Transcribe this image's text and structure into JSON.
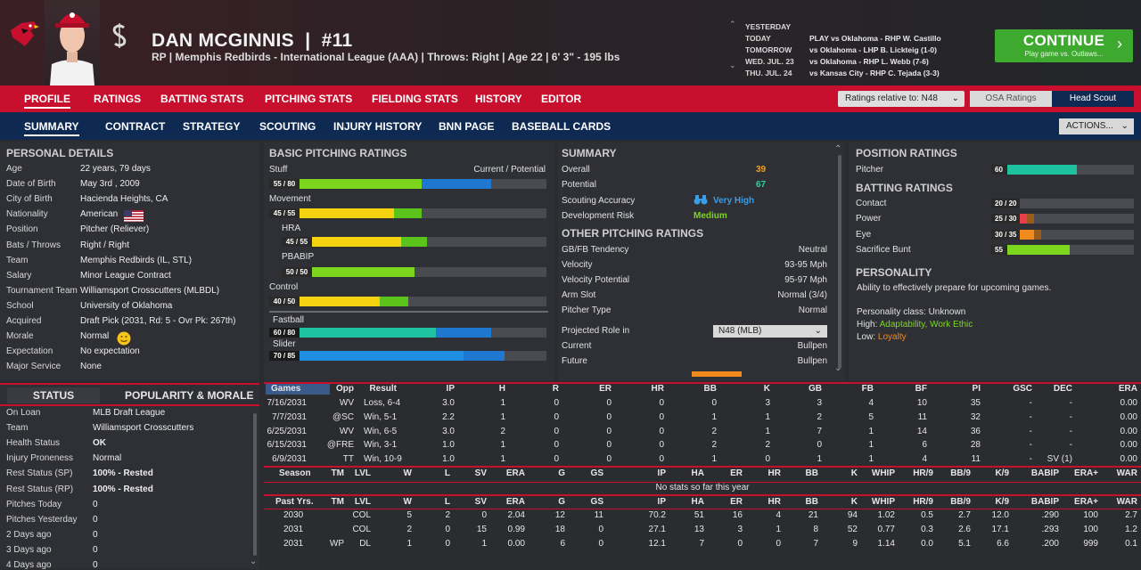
{
  "header": {
    "player_name": "DAN MCGINNIS",
    "number": "#11",
    "subtitle": "RP | Memphis Redbirds - International League (AAA)  |  Throws: Right  |  Age 22  |  6' 3\" - 195 lbs",
    "schedule": [
      {
        "day": "YESTERDAY",
        "game": ""
      },
      {
        "day": "TODAY",
        "game": "PLAY vs Oklahoma - RHP W. Castillo"
      },
      {
        "day": "TOMORROW",
        "game": "vs Oklahoma - LHP B. Lickteig (1-0)"
      },
      {
        "day": "WED. JUL. 23",
        "game": "vs Oklahoma - RHP L. Webb (7-6)"
      },
      {
        "day": "THU. JUL. 24",
        "game": "vs Kansas City - RHP C. Tejada (3-3)"
      }
    ],
    "continue_label": "CONTINUE",
    "continue_sub": "Play game vs. Outlaws..."
  },
  "nav1": {
    "tabs": [
      "PROFILE",
      "RATINGS",
      "BATTING STATS",
      "PITCHING STATS",
      "FIELDING STATS",
      "HISTORY",
      "EDITOR"
    ],
    "ratings_relative": "Ratings relative to: N48",
    "osa": "OSA Ratings",
    "head_scout": "Head Scout"
  },
  "nav2": {
    "tabs": [
      "SUMMARY",
      "CONTRACT",
      "STRATEGY",
      "SCOUTING",
      "INJURY HISTORY",
      "BNN PAGE",
      "BASEBALL CARDS"
    ],
    "actions": "ACTIONS..."
  },
  "personal": {
    "title": "PERSONAL DETAILS",
    "rows": [
      [
        "Age",
        "22 years, 79 days"
      ],
      [
        "Date of Birth",
        "May 3rd , 2009"
      ],
      [
        "City of Birth",
        "Hacienda Heights, CA"
      ],
      [
        "Nationality",
        "American"
      ],
      [
        "Position",
        "Pitcher (Reliever)"
      ],
      [
        "Bats / Throws",
        "Right / Right"
      ],
      [
        "Team",
        "Memphis Redbirds (IL, STL)"
      ],
      [
        "Salary",
        "Minor League Contract"
      ],
      [
        "Tournament Team",
        "Williamsport Crosscutters (MLBDL)"
      ],
      [
        "School",
        "University of Oklahoma"
      ],
      [
        "Acquired",
        "Draft Pick (2031, Rd: 5 - Ovr Pk: 267th)"
      ],
      [
        "Morale",
        "Normal"
      ],
      [
        "Expectation",
        "No expectation"
      ],
      [
        "Major Service",
        "None"
      ]
    ]
  },
  "status": {
    "tab1": "STATUS",
    "tab2": "POPULARITY & MORALE",
    "rows": [
      [
        "On Loan",
        "MLB Draft League"
      ],
      [
        "Team",
        "Williamsport Crosscutters"
      ],
      [
        "Health Status",
        "OK"
      ],
      [
        "Injury Proneness",
        "Normal"
      ],
      [
        "Rest Status (SP)",
        "100% - Rested"
      ],
      [
        "Rest Status (RP)",
        "100% - Rested"
      ],
      [
        "Pitches Today",
        "0"
      ],
      [
        "Pitches Yesterday",
        "0"
      ],
      [
        "2 Days ago",
        "0"
      ],
      [
        "3 Days ago",
        "0"
      ],
      [
        "4 Days ago",
        "0"
      ]
    ]
  },
  "pitching": {
    "title": "BASIC PITCHING RATINGS",
    "cur_pot": "Current / Potential",
    "ratings": [
      {
        "name": "Stuff",
        "label": "55 / 80",
        "cur": 55,
        "pot": 80,
        "color": "#7cd61e"
      },
      {
        "name": "Movement",
        "label": "45 / 55",
        "cur": 45,
        "pot": 55,
        "color": "#f5d20f"
      },
      {
        "name": "HRA",
        "label": "45 / 55",
        "cur": 45,
        "pot": 55,
        "color": "#f5d20f"
      },
      {
        "name": "PBABIP",
        "label": "50 / 50",
        "cur": 50,
        "pot": 50,
        "color": "#7cd61e"
      },
      {
        "name": "Control",
        "label": "40 / 50",
        "cur": 40,
        "pot": 50,
        "color": "#f5d20f"
      },
      {
        "name": "Fastball",
        "label": "60 / 80",
        "cur": 60,
        "pot": 80,
        "color": "#1fc2a0"
      },
      {
        "name": "Slider",
        "label": "70 / 85",
        "cur": 70,
        "pot": 85,
        "color": "#1e8fe0"
      }
    ]
  },
  "summary": {
    "title": "SUMMARY",
    "rows": [
      [
        "Overall",
        "39"
      ],
      [
        "Potential",
        "67"
      ],
      [
        "Scouting Accuracy",
        "Very High"
      ],
      [
        "Development Risk",
        "Medium"
      ]
    ],
    "other_title": "OTHER PITCHING RATINGS",
    "other": [
      [
        "GB/FB Tendency",
        "Neutral"
      ],
      [
        "Velocity",
        "93-95 Mph"
      ],
      [
        "Velocity Potential",
        "95-97 Mph"
      ],
      [
        "Arm Slot",
        "Normal (3/4)"
      ],
      [
        "Pitcher Type",
        "Normal"
      ]
    ],
    "role_label": "Projected Role in",
    "role_select": "N48 (MLB)",
    "current": "Current",
    "current_val": "Bullpen",
    "future": "Future",
    "future_val": "Bullpen"
  },
  "position": {
    "title": "POSITION RATINGS",
    "pitcher": "Pitcher",
    "pitcher_val": 60,
    "batting_title": "BATTING RATINGS",
    "batting": [
      [
        "Contact",
        "20 / 20",
        20,
        20,
        "#e8404a"
      ],
      [
        "Power",
        "25 / 30",
        25,
        30,
        "#e8404a"
      ],
      [
        "Eye",
        "30 / 35",
        30,
        35,
        "#f08a1c"
      ],
      [
        "Sacrifice Bunt",
        "55",
        55,
        55,
        "#7cd61e"
      ]
    ],
    "personality_title": "PERSONALITY",
    "personality_desc": "Ability to effectively prepare for upcoming games.",
    "class": "Personality class: Unknown",
    "high_label": "High:",
    "high": "Adaptability, Work Ethic",
    "low_label": "Low:",
    "low": "Loyalty"
  },
  "games": {
    "headers": [
      "Games",
      "Opp",
      "Result",
      "IP",
      "H",
      "R",
      "ER",
      "HR",
      "BB",
      "K",
      "GB",
      "FB",
      "BF",
      "PI",
      "GSC",
      "DEC",
      "ERA"
    ],
    "rows": [
      [
        "7/16/2031",
        "WV",
        "Loss, 6-4",
        "3.0",
        "1",
        "0",
        "0",
        "0",
        "0",
        "3",
        "3",
        "4",
        "10",
        "35",
        "-",
        "-",
        "0.00"
      ],
      [
        "7/7/2031",
        "@SC",
        "Win, 5-1",
        "2.2",
        "1",
        "0",
        "0",
        "0",
        "1",
        "1",
        "2",
        "5",
        "11",
        "32",
        "-",
        "-",
        "0.00"
      ],
      [
        "6/25/2031",
        "WV",
        "Win, 6-5",
        "3.0",
        "2",
        "0",
        "0",
        "0",
        "2",
        "1",
        "7",
        "1",
        "14",
        "36",
        "-",
        "-",
        "0.00"
      ],
      [
        "6/15/2031",
        "@FRE",
        "Win, 3-1",
        "1.0",
        "1",
        "0",
        "0",
        "0",
        "2",
        "2",
        "0",
        "1",
        "6",
        "28",
        "-",
        "-",
        "0.00"
      ],
      [
        "6/9/2031",
        "TT",
        "Win, 10-9",
        "1.0",
        "1",
        "0",
        "0",
        "0",
        "1",
        "0",
        "1",
        "1",
        "4",
        "11",
        "-",
        "SV (1)",
        "0.00"
      ]
    ]
  },
  "season": {
    "headers": [
      "Season",
      "TM",
      "LVL",
      "W",
      "L",
      "SV",
      "ERA",
      "G",
      "GS",
      "IP",
      "HA",
      "ER",
      "HR",
      "BB",
      "K",
      "WHIP",
      "HR/9",
      "BB/9",
      "K/9",
      "BABIP",
      "ERA+",
      "WAR"
    ],
    "empty": "No stats so far this year"
  },
  "past": {
    "headers": [
      "Past Yrs.",
      "TM",
      "LVL",
      "W",
      "L",
      "SV",
      "ERA",
      "G",
      "GS",
      "IP",
      "HA",
      "ER",
      "HR",
      "BB",
      "K",
      "WHIP",
      "HR/9",
      "BB/9",
      "K/9",
      "BABIP",
      "ERA+",
      "WAR"
    ],
    "rows": [
      [
        "2030",
        "",
        "COL",
        "5",
        "2",
        "0",
        "2.04",
        "12",
        "11",
        "70.2",
        "51",
        "16",
        "4",
        "21",
        "94",
        "1.02",
        "0.5",
        "2.7",
        "12.0",
        ".290",
        "100",
        "2.7"
      ],
      [
        "2031",
        "",
        "COL",
        "2",
        "0",
        "15",
        "0.99",
        "18",
        "0",
        "27.1",
        "13",
        "3",
        "1",
        "8",
        "52",
        "0.77",
        "0.3",
        "2.6",
        "17.1",
        ".293",
        "100",
        "1.2"
      ],
      [
        "2031",
        "WP",
        "DL",
        "1",
        "0",
        "1",
        "0.00",
        "6",
        "0",
        "12.1",
        "7",
        "0",
        "0",
        "7",
        "9",
        "1.14",
        "0.0",
        "5.1",
        "6.6",
        ".200",
        "999",
        "0.1"
      ]
    ]
  }
}
